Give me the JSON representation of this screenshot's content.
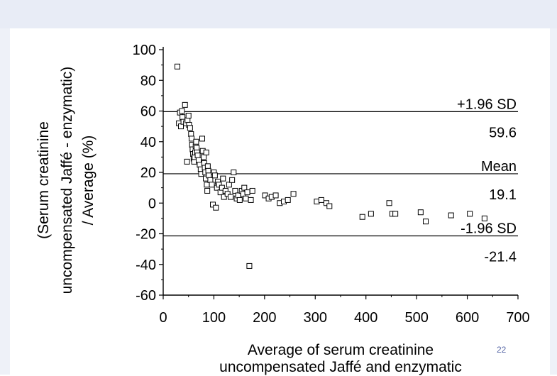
{
  "slide": {
    "page_number": "22",
    "band_color": "#e8ecf6"
  },
  "chart_data": {
    "type": "scatter",
    "title": "",
    "ylabel_lines": [
      "(Serum creatinine",
      "uncompensated Jaffé - enzymatic)",
      "/ Average (%)"
    ],
    "xlabel_lines": [
      "Average of serum creatinine",
      "uncompensated Jaffé and enzymatic"
    ],
    "xlim": [
      0,
      700
    ],
    "ylim": [
      -60,
      100
    ],
    "xticks": [
      "0",
      "100",
      "200",
      "300",
      "400",
      "500",
      "600",
      "700"
    ],
    "yticks": [
      "100",
      "80",
      "60",
      "40",
      "20",
      "0",
      "-20",
      "-40",
      "-60"
    ],
    "grid": false,
    "reference_lines": [
      {
        "label": "+1.96 SD",
        "value": 59.6,
        "value_text": "59.6"
      },
      {
        "label": "Mean",
        "value": 19.1,
        "value_text": "19.1"
      },
      {
        "label": "-1.96 SD",
        "value": -21.4,
        "value_text": "-21.4"
      }
    ],
    "points": [
      [
        28,
        89
      ],
      [
        31,
        52
      ],
      [
        33,
        59
      ],
      [
        35,
        50
      ],
      [
        37,
        60
      ],
      [
        38,
        56
      ],
      [
        40,
        53
      ],
      [
        43,
        64
      ],
      [
        45,
        52
      ],
      [
        47,
        27
      ],
      [
        48,
        54
      ],
      [
        50,
        57
      ],
      [
        51,
        51
      ],
      [
        53,
        49
      ],
      [
        55,
        45
      ],
      [
        56,
        42
      ],
      [
        57,
        38
      ],
      [
        58,
        35
      ],
      [
        59,
        32
      ],
      [
        60,
        29
      ],
      [
        61,
        27
      ],
      [
        62,
        30
      ],
      [
        63,
        33
      ],
      [
        64,
        37
      ],
      [
        65,
        40
      ],
      [
        66,
        36
      ],
      [
        67,
        33
      ],
      [
        68,
        31
      ],
      [
        70,
        28
      ],
      [
        72,
        25
      ],
      [
        74,
        22
      ],
      [
        75,
        19
      ],
      [
        77,
        42
      ],
      [
        78,
        34
      ],
      [
        80,
        30
      ],
      [
        81,
        26
      ],
      [
        82,
        23
      ],
      [
        83,
        20
      ],
      [
        84,
        16
      ],
      [
        85,
        33
      ],
      [
        86,
        12
      ],
      [
        87,
        8
      ],
      [
        88,
        24
      ],
      [
        89,
        21
      ],
      [
        90,
        18
      ],
      [
        93,
        15
      ],
      [
        96,
        12
      ],
      [
        98,
        -1
      ],
      [
        100,
        20
      ],
      [
        102,
        18
      ],
      [
        104,
        -3
      ],
      [
        106,
        10
      ],
      [
        108,
        14
      ],
      [
        110,
        12
      ],
      [
        113,
        7
      ],
      [
        116,
        10
      ],
      [
        118,
        16
      ],
      [
        120,
        4
      ],
      [
        123,
        8
      ],
      [
        127,
        6
      ],
      [
        130,
        12
      ],
      [
        133,
        4
      ],
      [
        136,
        15
      ],
      [
        139,
        20
      ],
      [
        142,
        8
      ],
      [
        145,
        3
      ],
      [
        148,
        5
      ],
      [
        151,
        2
      ],
      [
        155,
        8
      ],
      [
        158,
        6
      ],
      [
        160,
        10
      ],
      [
        163,
        3
      ],
      [
        166,
        7
      ],
      [
        170,
        -41
      ],
      [
        173,
        2
      ],
      [
        176,
        8
      ],
      [
        201,
        5
      ],
      [
        208,
        3
      ],
      [
        214,
        4
      ],
      [
        222,
        5
      ],
      [
        230,
        0
      ],
      [
        238,
        1
      ],
      [
        246,
        2
      ],
      [
        257,
        6
      ],
      [
        303,
        1
      ],
      [
        312,
        2
      ],
      [
        322,
        0
      ],
      [
        328,
        -2
      ],
      [
        393,
        -9
      ],
      [
        410,
        -7
      ],
      [
        446,
        0
      ],
      [
        452,
        -7
      ],
      [
        458,
        -7
      ],
      [
        508,
        -6
      ],
      [
        518,
        -12
      ],
      [
        568,
        -8
      ],
      [
        605,
        -7
      ],
      [
        634,
        -10
      ]
    ]
  }
}
